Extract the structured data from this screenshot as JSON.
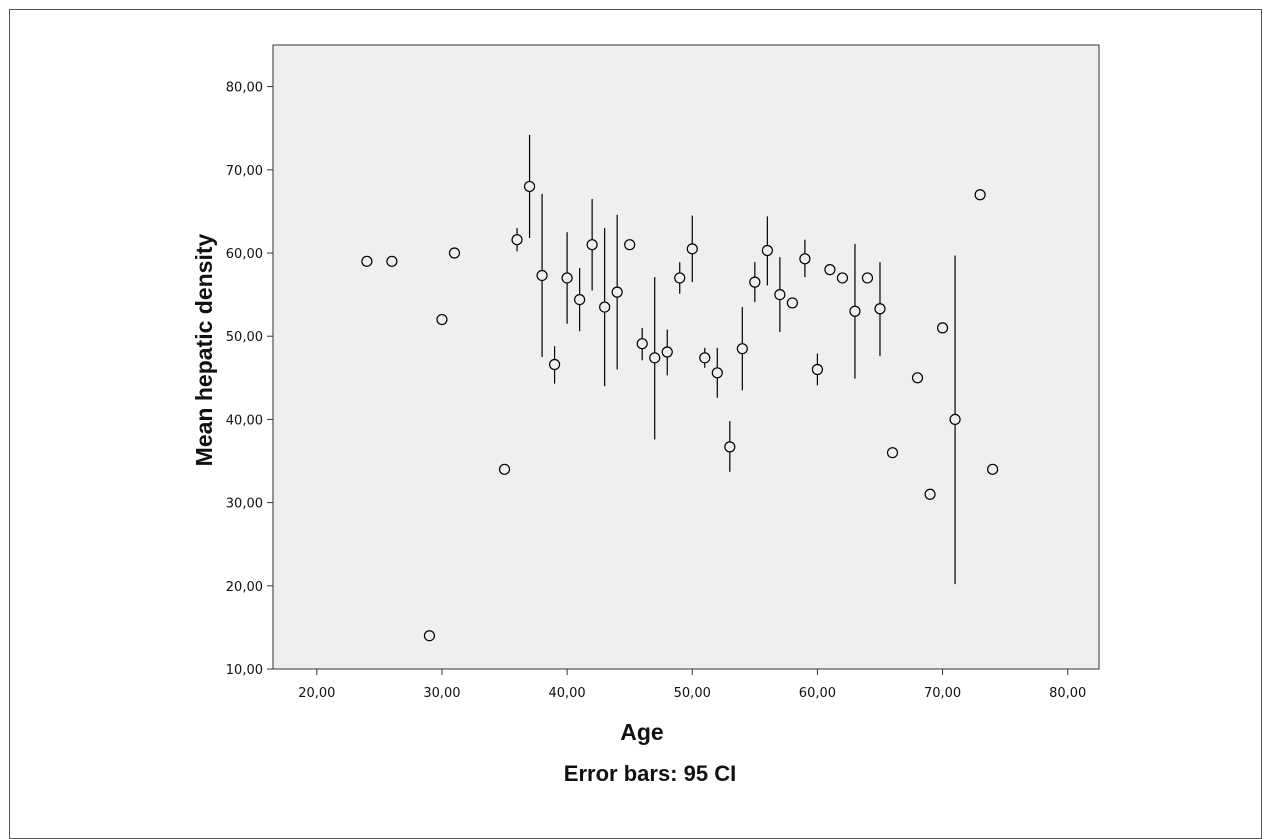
{
  "chart_data": {
    "type": "scatter",
    "title": "",
    "xlabel": "Age",
    "ylabel": "Mean hepatic density",
    "footnote": "Error bars: 95 CI",
    "xlim": [
      16.5,
      82.5
    ],
    "ylim": [
      10,
      85
    ],
    "x_ticks": [
      20,
      30,
      40,
      50,
      60,
      70,
      80
    ],
    "x_tick_labels": [
      "20,00",
      "30,00",
      "40,00",
      "50,00",
      "60,00",
      "70,00",
      "80,00"
    ],
    "y_ticks": [
      10,
      20,
      30,
      40,
      50,
      60,
      70,
      80
    ],
    "y_tick_labels": [
      "10,00",
      "20,00",
      "30,00",
      "40,00",
      "50,00",
      "60,00",
      "70,00",
      "80,00"
    ],
    "grid": false,
    "colors": {
      "plot_bg": "#efefef",
      "marker": "#000000",
      "axis": "#333333"
    },
    "points": [
      {
        "x": 24,
        "y": 59
      },
      {
        "x": 26,
        "y": 59
      },
      {
        "x": 29,
        "y": 14
      },
      {
        "x": 30,
        "y": 52
      },
      {
        "x": 31,
        "y": 60
      },
      {
        "x": 35,
        "y": 34
      },
      {
        "x": 36,
        "y": 61.6,
        "lo": 60.2,
        "hi": 63
      },
      {
        "x": 37,
        "y": 68,
        "lo": 61.8,
        "hi": 74.2
      },
      {
        "x": 38,
        "y": 57.3,
        "lo": 47.5,
        "hi": 67.1
      },
      {
        "x": 39,
        "y": 46.6,
        "lo": 44.3,
        "hi": 48.8
      },
      {
        "x": 40,
        "y": 57,
        "lo": 51.5,
        "hi": 62.5
      },
      {
        "x": 41,
        "y": 54.4,
        "lo": 50.6,
        "hi": 58.2
      },
      {
        "x": 42,
        "y": 61,
        "lo": 55.5,
        "hi": 66.5
      },
      {
        "x": 43,
        "y": 53.5,
        "lo": 44,
        "hi": 63
      },
      {
        "x": 44,
        "y": 55.3,
        "lo": 46,
        "hi": 64.6
      },
      {
        "x": 45,
        "y": 61
      },
      {
        "x": 46,
        "y": 49.1,
        "lo": 47.1,
        "hi": 51
      },
      {
        "x": 47,
        "y": 47.4,
        "lo": 37.6,
        "hi": 57.1
      },
      {
        "x": 48,
        "y": 48.1,
        "lo": 45.3,
        "hi": 50.8
      },
      {
        "x": 49,
        "y": 57,
        "lo": 55.1,
        "hi": 58.9
      },
      {
        "x": 50,
        "y": 60.5,
        "lo": 56.5,
        "hi": 64.5
      },
      {
        "x": 51,
        "y": 47.4,
        "lo": 46.2,
        "hi": 48.6
      },
      {
        "x": 52,
        "y": 45.6,
        "lo": 42.6,
        "hi": 48.6
      },
      {
        "x": 53,
        "y": 36.7,
        "lo": 33.7,
        "hi": 39.8
      },
      {
        "x": 54,
        "y": 48.5,
        "lo": 43.5,
        "hi": 53.5
      },
      {
        "x": 55,
        "y": 56.5,
        "lo": 54.1,
        "hi": 58.9
      },
      {
        "x": 56,
        "y": 60.3,
        "lo": 56.1,
        "hi": 64.4
      },
      {
        "x": 57,
        "y": 55,
        "lo": 50.5,
        "hi": 59.5
      },
      {
        "x": 58,
        "y": 54
      },
      {
        "x": 59,
        "y": 59.3,
        "lo": 57.1,
        "hi": 61.6
      },
      {
        "x": 60,
        "y": 46,
        "lo": 44.1,
        "hi": 47.9
      },
      {
        "x": 61,
        "y": 58
      },
      {
        "x": 62,
        "y": 57
      },
      {
        "x": 63,
        "y": 53,
        "lo": 44.9,
        "hi": 61.1
      },
      {
        "x": 64,
        "y": 57
      },
      {
        "x": 65,
        "y": 53.3,
        "lo": 47.6,
        "hi": 58.9
      },
      {
        "x": 66,
        "y": 36
      },
      {
        "x": 68,
        "y": 45
      },
      {
        "x": 69,
        "y": 31
      },
      {
        "x": 70,
        "y": 51
      },
      {
        "x": 71,
        "y": 40,
        "lo": 20.2,
        "hi": 59.7
      },
      {
        "x": 73,
        "y": 67
      },
      {
        "x": 74,
        "y": 34
      }
    ]
  }
}
